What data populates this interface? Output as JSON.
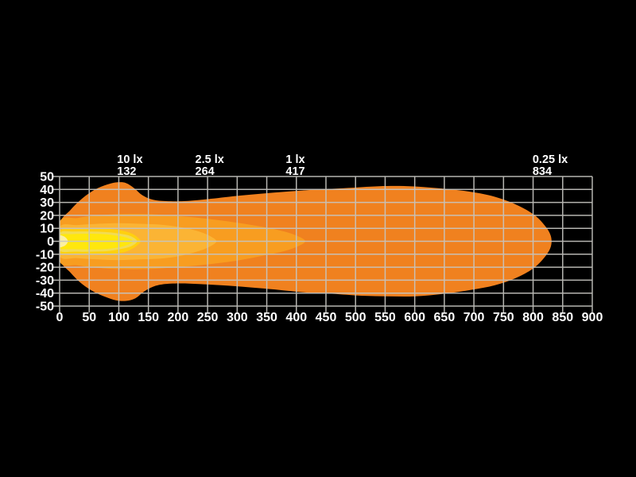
{
  "page": {
    "background": "#000000",
    "text_color": "#FFFFFF"
  },
  "chart_data": {
    "type": "area",
    "title": "",
    "xlabel": "",
    "ylabel": "",
    "grid": true,
    "grid_color": "#C6C5C0",
    "axis_text_color": "#FFFFFF",
    "x_axis": {
      "min": 0,
      "max": 900,
      "step": 50,
      "ticks": [
        0,
        50,
        100,
        150,
        200,
        250,
        300,
        350,
        400,
        450,
        500,
        550,
        600,
        650,
        700,
        750,
        800,
        850,
        900
      ]
    },
    "y_axis": {
      "min": -50,
      "max": 50,
      "step": 10,
      "ticks": [
        50,
        40,
        30,
        20,
        10,
        0,
        -10,
        -20,
        -30,
        -40,
        -50
      ]
    },
    "lux_markers": [
      {
        "label": "10 lx",
        "distance": 132
      },
      {
        "label": "2.5 lx",
        "distance": 264
      },
      {
        "label": "1 lx",
        "distance": 417
      },
      {
        "label": "0.25 lx",
        "distance": 834
      }
    ],
    "contours": [
      {
        "name": "region-0.25lx",
        "level_lx": 0.25,
        "color": "#F0811F",
        "points": [
          [
            0,
            13
          ],
          [
            18,
            24
          ],
          [
            38,
            33
          ],
          [
            60,
            40
          ],
          [
            82,
            44
          ],
          [
            98,
            45.5
          ],
          [
            112,
            45
          ],
          [
            126,
            41
          ],
          [
            140,
            35.5
          ],
          [
            158,
            32
          ],
          [
            180,
            31
          ],
          [
            210,
            31
          ],
          [
            250,
            32.5
          ],
          [
            300,
            35
          ],
          [
            360,
            37.5
          ],
          [
            420,
            39.5
          ],
          [
            480,
            41
          ],
          [
            540,
            42.5
          ],
          [
            590,
            42.5
          ],
          [
            640,
            41
          ],
          [
            690,
            38.5
          ],
          [
            730,
            35
          ],
          [
            768,
            29
          ],
          [
            800,
            21
          ],
          [
            820,
            12
          ],
          [
            830,
            4
          ],
          [
            830,
            -4
          ],
          [
            820,
            -12
          ],
          [
            800,
            -21
          ],
          [
            770,
            -28.5
          ],
          [
            735,
            -34
          ],
          [
            695,
            -37.5
          ],
          [
            650,
            -40.5
          ],
          [
            600,
            -42.5
          ],
          [
            555,
            -42.5
          ],
          [
            510,
            -42
          ],
          [
            460,
            -40.5
          ],
          [
            415,
            -39.5
          ],
          [
            370,
            -37.5
          ],
          [
            320,
            -35.5
          ],
          [
            275,
            -34
          ],
          [
            235,
            -33
          ],
          [
            205,
            -32.5
          ],
          [
            178,
            -33
          ],
          [
            158,
            -35
          ],
          [
            142,
            -39
          ],
          [
            128,
            -44
          ],
          [
            112,
            -46
          ],
          [
            95,
            -45.5
          ],
          [
            78,
            -43
          ],
          [
            58,
            -39
          ],
          [
            38,
            -33
          ],
          [
            18,
            -24
          ],
          [
            0,
            -13
          ]
        ]
      },
      {
        "name": "region-1lx",
        "level_lx": 1,
        "color": "#F89D20",
        "points": [
          [
            0,
            15
          ],
          [
            30,
            18
          ],
          [
            65,
            20
          ],
          [
            105,
            21
          ],
          [
            145,
            21
          ],
          [
            185,
            20
          ],
          [
            225,
            18.5
          ],
          [
            265,
            16.5
          ],
          [
            305,
            14
          ],
          [
            345,
            11
          ],
          [
            380,
            7.5
          ],
          [
            403,
            3.8
          ],
          [
            415,
            0
          ],
          [
            403,
            -3.8
          ],
          [
            380,
            -7.5
          ],
          [
            345,
            -11
          ],
          [
            305,
            -14.5
          ],
          [
            265,
            -17
          ],
          [
            225,
            -19
          ],
          [
            185,
            -20.5
          ],
          [
            145,
            -21.5
          ],
          [
            105,
            -21.5
          ],
          [
            65,
            -20.5
          ],
          [
            30,
            -18.5
          ],
          [
            0,
            -15.5
          ]
        ]
      },
      {
        "name": "region-2.5lx",
        "level_lx": 2.5,
        "color": "#FBB434",
        "points": [
          [
            0,
            11
          ],
          [
            30,
            12.5
          ],
          [
            65,
            13.5
          ],
          [
            100,
            14
          ],
          [
            135,
            13.5
          ],
          [
            165,
            13
          ],
          [
            195,
            11.5
          ],
          [
            220,
            9.5
          ],
          [
            242,
            6.5
          ],
          [
            258,
            3
          ],
          [
            265,
            0
          ],
          [
            258,
            -3
          ],
          [
            242,
            -6.5
          ],
          [
            220,
            -9.5
          ],
          [
            195,
            -12
          ],
          [
            165,
            -13.5
          ],
          [
            135,
            -14
          ],
          [
            100,
            -14.5
          ],
          [
            65,
            -14
          ],
          [
            30,
            -13
          ],
          [
            0,
            -11.5
          ]
        ]
      },
      {
        "name": "region-10lx",
        "level_lx": 10,
        "color": "#FFD00F",
        "points": [
          [
            0,
            8
          ],
          [
            25,
            9.5
          ],
          [
            55,
            10
          ],
          [
            85,
            9.5
          ],
          [
            108,
            8
          ],
          [
            124,
            5.5
          ],
          [
            134,
            2
          ],
          [
            137,
            0
          ],
          [
            134,
            -2
          ],
          [
            124,
            -5.5
          ],
          [
            108,
            -8.5
          ],
          [
            85,
            -10
          ],
          [
            55,
            -10.5
          ],
          [
            25,
            -10
          ],
          [
            0,
            -8.5
          ]
        ]
      },
      {
        "name": "region-10lx-inner-ring",
        "level_lx": null,
        "color": "#F2DC52",
        "points": [
          [
            0,
            6.5
          ],
          [
            25,
            7.5
          ],
          [
            55,
            7.5
          ],
          [
            82,
            7
          ],
          [
            103,
            5.8
          ],
          [
            120,
            4
          ],
          [
            131,
            0
          ],
          [
            120,
            -4
          ],
          [
            103,
            -6
          ],
          [
            82,
            -7.5
          ],
          [
            55,
            -8
          ],
          [
            25,
            -8
          ],
          [
            0,
            -7
          ]
        ]
      },
      {
        "name": "hotspot-core",
        "level_lx": null,
        "color": "#FFE70D",
        "points": [
          [
            0,
            4.5
          ],
          [
            22,
            5.5
          ],
          [
            50,
            5.8
          ],
          [
            75,
            5.5
          ],
          [
            95,
            4.5
          ],
          [
            112,
            3
          ],
          [
            124,
            0
          ],
          [
            112,
            -3.2
          ],
          [
            95,
            -5
          ],
          [
            75,
            -6
          ],
          [
            50,
            -6.3
          ],
          [
            22,
            -6
          ],
          [
            0,
            -5
          ]
        ]
      },
      {
        "name": "near-field-pale-spot",
        "level_lx": null,
        "color": "#FBEFA3",
        "points": [
          [
            0,
            4
          ],
          [
            6,
            4
          ],
          [
            11,
            2.5
          ],
          [
            14,
            0
          ],
          [
            11,
            -2.5
          ],
          [
            6,
            -4
          ],
          [
            0,
            -4
          ]
        ]
      }
    ]
  }
}
